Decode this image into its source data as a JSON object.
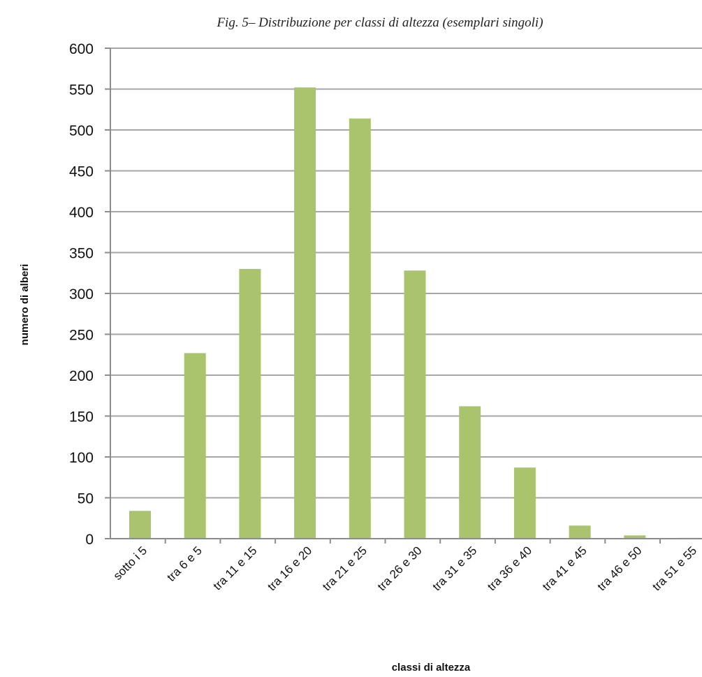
{
  "chart_data": {
    "type": "bar",
    "title": "Fig. 5– Distribuzione per classi di altezza (esemplari singoli)",
    "xlabel": "classi di altezza",
    "ylabel": "numero di alberi",
    "categories": [
      "sotto i 5",
      "tra 6 e 5",
      "tra 11 e 15",
      "tra 16 e 20",
      "tra 21 e 25",
      "tra 26 e 30",
      "tra 31 e 35",
      "tra 36 e 40",
      "tra 41 e 45",
      "tra 46 e 50",
      "tra 51 e 55"
    ],
    "values": [
      34,
      227,
      330,
      552,
      514,
      328,
      162,
      87,
      16,
      4,
      1
    ],
    "ylim": [
      0,
      600
    ],
    "yticks": [
      0,
      50,
      100,
      150,
      200,
      250,
      300,
      350,
      400,
      450,
      500,
      550,
      600
    ],
    "grid": true,
    "legend": "none",
    "bar_color": "#a9c46c",
    "grid_color": "#a6a6a6",
    "axis_color": "#8c8c8c"
  }
}
